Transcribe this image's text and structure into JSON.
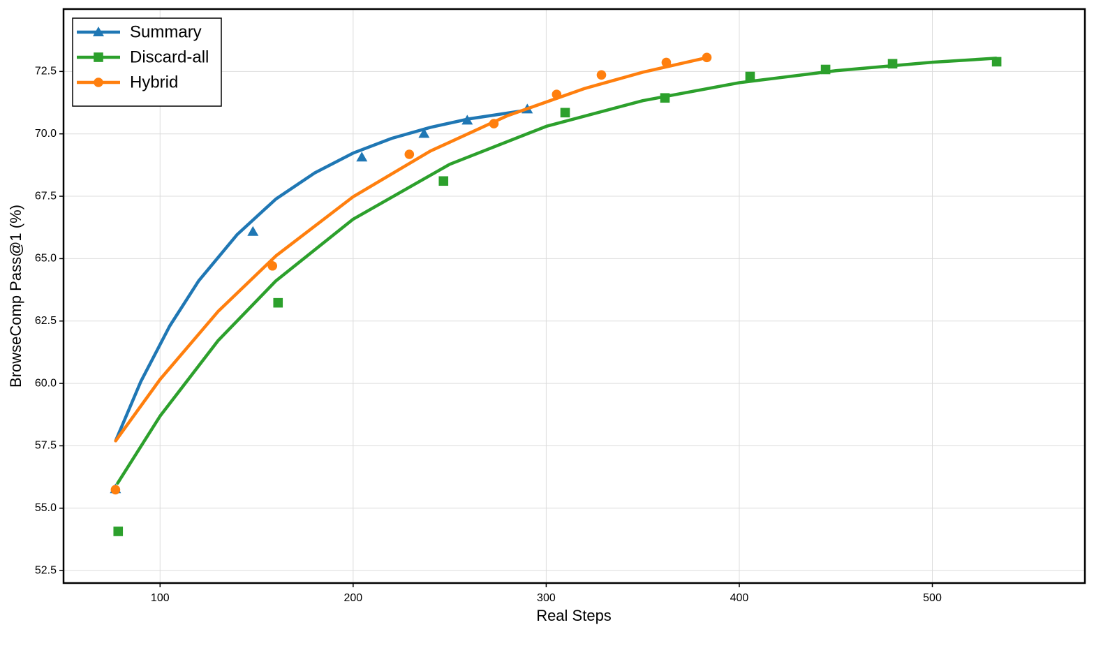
{
  "chart_data": {
    "type": "scatter",
    "x_label": "Real Steps",
    "y_label": "BrowseComp Pass@1 (%)",
    "xlim": [
      50,
      579
    ],
    "ylim": [
      52.0,
      75.0
    ],
    "xticks": [
      100,
      200,
      300,
      400,
      500
    ],
    "yticks": [
      52.5,
      {
        "value": 55,
        "label": "55.0"
      },
      57.5,
      {
        "value": 60,
        "label": "60.0"
      },
      62.5,
      {
        "value": 65,
        "label": "65.0"
      },
      67.5,
      {
        "value": 70,
        "label": "70.0"
      },
      72.5
    ],
    "grid": true,
    "legend": "upper left",
    "series": [
      {
        "name": "Summary",
        "color": "#1f77b4",
        "marker": "triangle",
        "x": [
          76.9,
          148.1,
          204.5,
          236.7,
          259.1,
          290.2
        ],
        "values": [
          55.77,
          66.08,
          69.06,
          70.01,
          70.54,
          70.99
        ],
        "fit_x": [
          77,
          90,
          105,
          120,
          140,
          160,
          180,
          200,
          220,
          240,
          260,
          290
        ],
        "fit_values": [
          57.7,
          60.07,
          62.3,
          64.11,
          65.97,
          67.39,
          68.43,
          69.23,
          69.82,
          70.26,
          70.6,
          70.95
        ]
      },
      {
        "name": "Discard-all",
        "color": "#2ca02c",
        "marker": "square",
        "x": [
          78.3,
          161.1,
          246.8,
          309.8,
          361.5,
          405.6,
          444.7,
          479.4,
          533.3
        ],
        "values": [
          54.07,
          63.23,
          68.11,
          70.85,
          71.44,
          72.3,
          72.58,
          72.81,
          72.89
        ],
        "fit_x": [
          78,
          100,
          130,
          160,
          200,
          250,
          300,
          350,
          400,
          450,
          500,
          533
        ],
        "fit_values": [
          56.0,
          58.69,
          61.71,
          64.11,
          66.58,
          68.78,
          70.3,
          71.33,
          72.05,
          72.53,
          72.87,
          73.03
        ]
      },
      {
        "name": "Hybrid",
        "color": "#ff7f0e",
        "marker": "circle",
        "x": [
          76.9,
          158.2,
          229.1,
          272.9,
          305.4,
          328.6,
          362.2,
          383.2
        ],
        "values": [
          55.74,
          64.71,
          69.18,
          70.41,
          71.58,
          72.36,
          72.86,
          73.06
        ],
        "fit_x": [
          77,
          100,
          130,
          160,
          200,
          240,
          280,
          320,
          350,
          383
        ],
        "fit_values": [
          57.7,
          60.16,
          62.88,
          65.11,
          67.48,
          69.31,
          70.73,
          71.82,
          72.47,
          73.05
        ]
      }
    ]
  }
}
